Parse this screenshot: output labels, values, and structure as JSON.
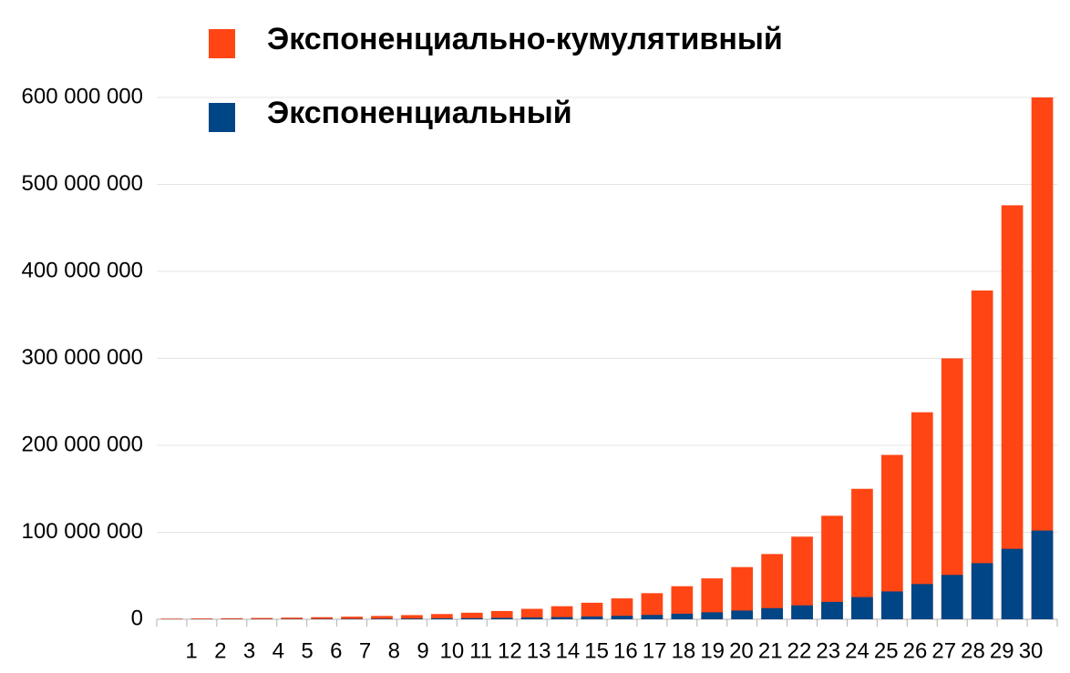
{
  "chart_data": {
    "type": "bar",
    "categories": [
      "1",
      "2",
      "3",
      "4",
      "5",
      "6",
      "7",
      "8",
      "9",
      "10",
      "11",
      "12",
      "13",
      "14",
      "15",
      "16",
      "17",
      "18",
      "19",
      "20",
      "21",
      "22",
      "23",
      "24",
      "25",
      "26",
      "27",
      "28",
      "29",
      "30"
    ],
    "series": [
      {
        "name": "Экспоненциально-кумулятивный",
        "color": "#ff4514",
        "values": [
          750000,
          950000,
          1200000,
          1500000,
          1900000,
          2400000,
          3000000,
          3800000,
          4800000,
          6000000,
          7500000,
          9500000,
          12000000,
          15000000,
          19000000,
          24000000,
          30000000,
          38000000,
          47000000,
          60000000,
          75000000,
          95000000,
          119000000,
          150000000,
          189000000,
          238000000,
          300000000,
          378000000,
          476000000,
          600000000
        ]
      },
      {
        "name": "Экспоненциальный",
        "color": "#004586",
        "values": [
          130000,
          160000,
          200000,
          250000,
          320000,
          400000,
          500000,
          640000,
          800000,
          1000000,
          1300000,
          1600000,
          2000000,
          2500000,
          3200000,
          4000000,
          5000000,
          6400000,
          8000000,
          10000000,
          12800000,
          16000000,
          20000000,
          25500000,
          32000000,
          40500000,
          51000000,
          64500000,
          81000000,
          102000000
        ]
      }
    ],
    "ylim": [
      0,
      600000000
    ],
    "yticks": [
      0,
      {
        "value": 100000000,
        "label": "100 000 000"
      },
      {
        "value": 200000000,
        "label": "200 000 000"
      },
      {
        "value": 300000000,
        "label": "300 000 000"
      },
      {
        "value": 400000000,
        "label": "400 000 000"
      },
      {
        "value": 500000000,
        "label": "500 000 000"
      },
      {
        "value": 600000000,
        "label": "600 000 000"
      }
    ],
    "grid": true
  }
}
